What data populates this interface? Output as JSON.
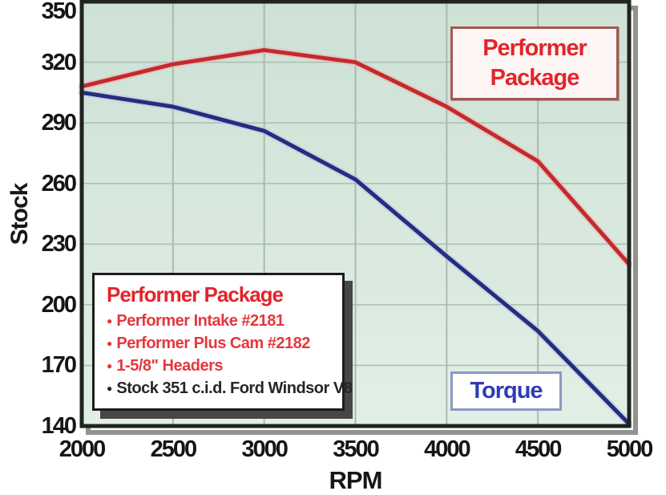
{
  "labels": {
    "performer_package": {
      "line1": "Performer",
      "line2": "Package"
    },
    "torque": "Torque"
  },
  "legend": {
    "title": "Performer Package",
    "items": [
      {
        "text": "Performer Intake #2181",
        "color": "red"
      },
      {
        "text": "Performer Plus Cam #2182",
        "color": "red"
      },
      {
        "text": "1-5/8\" Headers",
        "color": "red"
      },
      {
        "text": "Stock 351 c.i.d. Ford Windsor V8",
        "color": "black"
      }
    ]
  },
  "chart_data": {
    "type": "line",
    "title": "",
    "xlabel": "RPM",
    "ylabel": "Stock",
    "xlim": [
      2000,
      5000
    ],
    "ylim": [
      140,
      350
    ],
    "grid": true,
    "x_ticks": [
      2000,
      2500,
      3000,
      3500,
      4000,
      4500,
      5000
    ],
    "y_ticks": [
      350,
      320,
      290,
      260,
      230,
      200,
      170,
      140
    ],
    "x": [
      2000,
      2500,
      3000,
      3500,
      4000,
      4500,
      5000
    ],
    "series": [
      {
        "name": "Performer Package",
        "color": "#c32a2e",
        "halo": "#edb0ac",
        "values": [
          308,
          319,
          326,
          320,
          298,
          271,
          220
        ]
      },
      {
        "name": "Torque (Stock)",
        "color": "#232e7e",
        "halo": "#b7c2e4",
        "values": [
          305,
          298,
          286,
          262,
          224,
          187,
          141
        ]
      }
    ],
    "legend_position": "bottom-left",
    "colors": {
      "plot_bg_top": "#cde1d5",
      "plot_bg_bottom": "#e2efe6",
      "grid": "#a3b7ac",
      "frame": "#202420",
      "frame_shadow": "#8f958e",
      "accent_red": "#e2252b",
      "accent_blue": "#2f3db5"
    }
  }
}
